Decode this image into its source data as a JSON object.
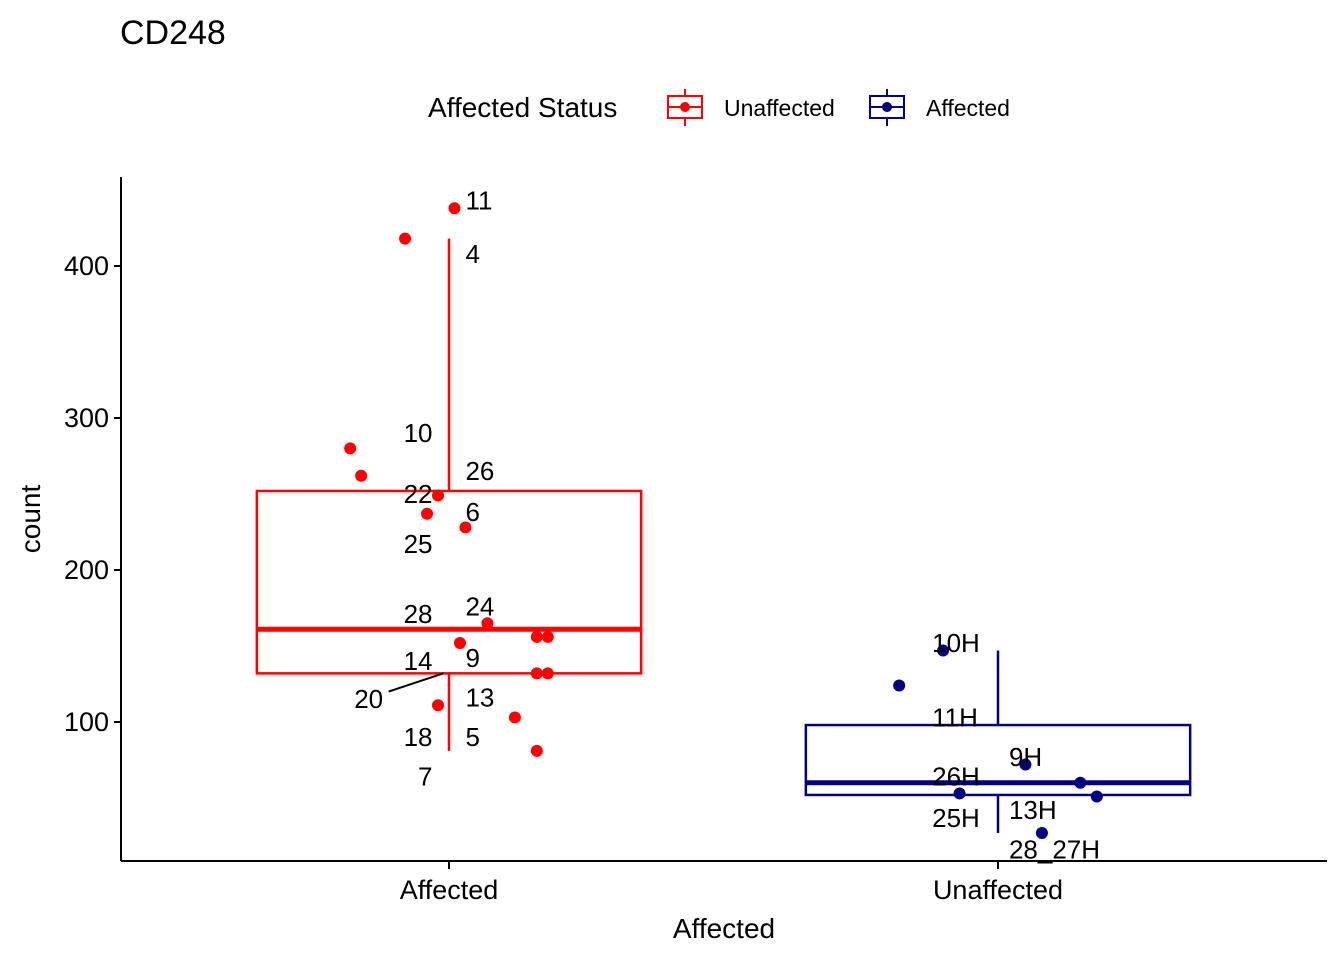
{
  "chart_data": {
    "type": "box",
    "title": "CD248",
    "xlabel": "Affected",
    "ylabel": "count",
    "ylim": [
      10,
      460
    ],
    "yticks": [
      100,
      200,
      300,
      400
    ],
    "categories": [
      "Affected",
      "Unaffected"
    ],
    "legend": {
      "title": "Affected Status",
      "position": "top",
      "entries": [
        {
          "name": "Unaffected",
          "color": "#ff0000"
        },
        {
          "name": "Affected",
          "color": "#000080"
        }
      ]
    },
    "boxes": [
      {
        "category": "Affected",
        "color": "#ff0000",
        "q1": 132,
        "median": 161,
        "q3": 252,
        "whisker_low": 81,
        "whisker_high": 418,
        "points": [
          {
            "x": 0.01,
            "y": 438
          },
          {
            "x": -0.08,
            "y": 418
          },
          {
            "x": -0.18,
            "y": 280
          },
          {
            "x": -0.16,
            "y": 262
          },
          {
            "x": -0.02,
            "y": 249
          },
          {
            "x": -0.04,
            "y": 237
          },
          {
            "x": 0.03,
            "y": 228
          },
          {
            "x": 0.07,
            "y": 165
          },
          {
            "x": 0.16,
            "y": 156
          },
          {
            "x": 0.18,
            "y": 156
          },
          {
            "x": 0.02,
            "y": 152
          },
          {
            "x": 0.16,
            "y": 132
          },
          {
            "x": 0.18,
            "y": 132
          },
          {
            "x": -0.02,
            "y": 111
          },
          {
            "x": 0.12,
            "y": 103
          },
          {
            "x": 0.16,
            "y": 81
          }
        ],
        "labels": [
          {
            "text": "11",
            "x": 0.03,
            "y": 443,
            "anchor": "start"
          },
          {
            "text": "4",
            "x": 0.03,
            "y": 408,
            "anchor": "start"
          },
          {
            "text": "10",
            "x": -0.03,
            "y": 290,
            "anchor": "end"
          },
          {
            "text": "26",
            "x": 0.03,
            "y": 265,
            "anchor": "start"
          },
          {
            "text": "22",
            "x": -0.03,
            "y": 250,
            "anchor": "end"
          },
          {
            "text": "6",
            "x": 0.03,
            "y": 238,
            "anchor": "start"
          },
          {
            "text": "25",
            "x": -0.03,
            "y": 217,
            "anchor": "end"
          },
          {
            "text": "28",
            "x": -0.03,
            "y": 171,
            "anchor": "end"
          },
          {
            "text": "24",
            "x": 0.03,
            "y": 176,
            "anchor": "start"
          },
          {
            "text": "14",
            "x": -0.03,
            "y": 140,
            "anchor": "end"
          },
          {
            "text": "9",
            "x": 0.03,
            "y": 142,
            "anchor": "start"
          },
          {
            "text": "20",
            "x": -0.12,
            "y": 115,
            "anchor": "end"
          },
          {
            "text": "13",
            "x": 0.03,
            "y": 116,
            "anchor": "start"
          },
          {
            "text": "18",
            "x": -0.03,
            "y": 90,
            "anchor": "end"
          },
          {
            "text": "5",
            "x": 0.03,
            "y": 90,
            "anchor": "start"
          },
          {
            "text": "7",
            "x": -0.03,
            "y": 64,
            "anchor": "end"
          }
        ],
        "leader_lines": [
          {
            "x1": -0.11,
            "y1": 120,
            "x2": -0.01,
            "y2": 132
          }
        ]
      },
      {
        "category": "Unaffected",
        "color": "#000080",
        "q1": 52,
        "median": 60,
        "q3": 98,
        "whisker_low": 27,
        "whisker_high": 147,
        "points": [
          {
            "x": -0.1,
            "y": 147
          },
          {
            "x": -0.18,
            "y": 124
          },
          {
            "x": 0.05,
            "y": 72
          },
          {
            "x": 0.15,
            "y": 60
          },
          {
            "x": 0.18,
            "y": 51
          },
          {
            "x": -0.07,
            "y": 53
          },
          {
            "x": 0.08,
            "y": 27
          }
        ],
        "labels": [
          {
            "text": "10H",
            "x": -0.12,
            "y": 152,
            "anchor": "start"
          },
          {
            "text": "11H",
            "x": -0.12,
            "y": 103,
            "anchor": "start"
          },
          {
            "text": "9H",
            "x": 0.02,
            "y": 77,
            "anchor": "start"
          },
          {
            "text": "26H",
            "x": -0.12,
            "y": 64,
            "anchor": "start"
          },
          {
            "text": "25H",
            "x": -0.12,
            "y": 37,
            "anchor": "start"
          },
          {
            "text": "13H",
            "x": 0.02,
            "y": 42,
            "anchor": "start"
          },
          {
            "text": "28_27H",
            "x": 0.02,
            "y": 16,
            "anchor": "start"
          }
        ],
        "leader_lines": []
      }
    ]
  }
}
